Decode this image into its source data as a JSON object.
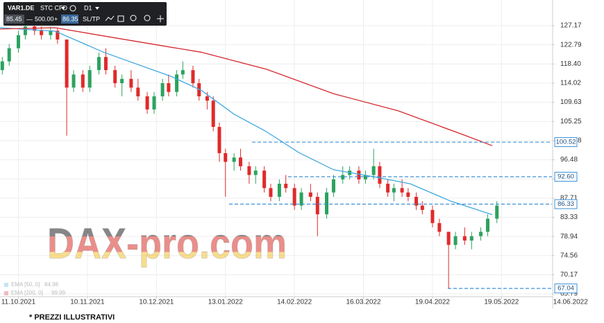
{
  "toolbar": {
    "symbol": "VAR1.DE",
    "instrument": "STC CFD",
    "timeframe": "D1",
    "bid": "85.45",
    "minus": "—",
    "quantity": "500.00",
    "plus": "+",
    "ask": "86.35",
    "sltp": "SL/TP"
  },
  "chart_data": {
    "type": "candlestick",
    "x": [
      "2021-10-04",
      "2021-10-07",
      "2021-10-11",
      "2021-10-14",
      "2021-10-18",
      "2021-10-21",
      "2021-10-25",
      "2021-10-28",
      "2021-11-01",
      "2021-11-04",
      "2021-11-08",
      "2021-11-11",
      "2021-11-15",
      "2021-11-18",
      "2021-11-22",
      "2021-11-25",
      "2021-11-29",
      "2021-12-02",
      "2021-12-06",
      "2021-12-09",
      "2021-12-13",
      "2021-12-16",
      "2021-12-20",
      "2021-12-23",
      "2021-12-28",
      "2021-12-31",
      "2022-01-04",
      "2022-01-07",
      "2022-01-10",
      "2022-01-13",
      "2022-01-17",
      "2022-01-20",
      "2022-01-24",
      "2022-01-27",
      "2022-01-31",
      "2022-02-03",
      "2022-02-07",
      "2022-02-10",
      "2022-02-14",
      "2022-02-17",
      "2022-02-21",
      "2022-02-24",
      "2022-02-28",
      "2022-03-03",
      "2022-03-07",
      "2022-03-10",
      "2022-03-14",
      "2022-03-17",
      "2022-03-21",
      "2022-03-24",
      "2022-03-28",
      "2022-03-31",
      "2022-04-04",
      "2022-04-07",
      "2022-04-11",
      "2022-04-14",
      "2022-04-19",
      "2022-04-22",
      "2022-04-26",
      "2022-04-29",
      "2022-05-03",
      "2022-05-06",
      "2022-05-10",
      "2022-05-13",
      "2022-05-17"
    ],
    "open": [
      117,
      119,
      122,
      125,
      127,
      126,
      125,
      126,
      124,
      113,
      116,
      113,
      117,
      120,
      117,
      114,
      115,
      113,
      111,
      108,
      111,
      114,
      112,
      116,
      117,
      114,
      111,
      110,
      104,
      98,
      96,
      97,
      95,
      93,
      94,
      90,
      88,
      91,
      90,
      86,
      89,
      88,
      84,
      89,
      92,
      93,
      94,
      92,
      93,
      95,
      91,
      89,
      90,
      89,
      88,
      86,
      85,
      82,
      80,
      77,
      79,
      78,
      79,
      80,
      83
    ],
    "high": [
      120,
      123,
      126,
      128,
      128,
      127,
      127,
      126.5,
      124,
      117,
      117,
      118,
      121,
      122,
      118,
      116,
      117,
      115,
      112,
      112,
      115,
      116,
      117,
      119,
      118,
      115,
      112,
      111,
      105,
      99,
      98,
      99,
      96,
      95,
      95,
      91,
      92,
      93,
      91,
      90,
      91,
      89,
      90,
      93,
      95,
      95,
      95,
      94,
      99,
      96,
      92,
      91,
      92,
      90,
      89,
      87,
      86,
      83,
      80,
      80,
      81,
      80,
      81,
      84,
      87
    ],
    "low": [
      116,
      118,
      121,
      124,
      125,
      124,
      124,
      123,
      102,
      112,
      112,
      112,
      116,
      116,
      113,
      111,
      112,
      110,
      107,
      107,
      110,
      111,
      111,
      115,
      113,
      110,
      108,
      103,
      96,
      88,
      94,
      94,
      91,
      91,
      89,
      87,
      87,
      89,
      85,
      85,
      87,
      79,
      83,
      88,
      91,
      92,
      91,
      91,
      92,
      90,
      88,
      87,
      88,
      87,
      85,
      84,
      81,
      79,
      67,
      76,
      77,
      76,
      78,
      79,
      82
    ],
    "close": [
      119,
      122,
      125,
      127,
      126,
      125,
      126,
      124,
      113,
      116,
      113,
      117,
      120,
      117,
      114,
      115,
      113,
      111,
      108,
      111,
      114,
      112,
      116,
      117,
      114,
      111,
      110,
      104,
      98,
      96,
      97,
      95,
      93,
      94,
      90,
      88,
      91,
      90,
      86,
      89,
      88,
      84,
      89,
      92,
      93,
      94,
      92,
      93,
      95,
      91,
      89,
      90,
      89,
      88,
      86,
      85,
      82,
      80,
      77,
      79,
      78,
      79,
      80,
      83,
      86
    ],
    "up_color": "#2ca25f",
    "down_color": "#e02a2a",
    "series": [
      {
        "name": "EMA [50, 0]",
        "last": 84.98,
        "color": "#3fa9e0",
        "x": [
          "2021-10-03",
          "2021-10-27",
          "2021-11-17",
          "2021-12-17",
          "2022-01-01",
          "2022-01-17",
          "2022-02-01",
          "2022-02-16",
          "2022-03-03",
          "2022-03-21",
          "2022-04-08",
          "2022-04-27",
          "2022-05-15"
        ],
        "values": [
          126.7,
          125.9,
          121.1,
          115.6,
          112.4,
          106.9,
          102.9,
          98.1,
          94.2,
          92.6,
          91.0,
          87.0,
          83.9
        ]
      },
      {
        "name": "EMA [200, 0]",
        "last": 99.99,
        "color": "#d4282e",
        "x": [
          "2021-10-03",
          "2021-10-27",
          "2021-12-02",
          "2022-01-01",
          "2022-02-01",
          "2022-03-03",
          "2022-04-02",
          "2022-05-03",
          "2022-05-15"
        ],
        "values": [
          126.4,
          126.7,
          123.5,
          121.1,
          117.2,
          111.6,
          107.7,
          102.1,
          99.7
        ]
      }
    ],
    "levels": [
      100.52,
      {
        "value": 92.6,
        "label": "92.60"
      },
      86.33,
      67.04
    ],
    "level_color": "#3a8fd9",
    "xlim": [
      "2021-10-03",
      "2022-06-07"
    ],
    "xticks": [
      {
        "value": "2021-10-11",
        "label": "11.10.2021"
      },
      {
        "value": "2021-11-10",
        "label": "10.11.2021"
      },
      {
        "value": "2021-12-10",
        "label": "10.12.2021"
      },
      {
        "value": "2022-01-13",
        "label": "13.01.2022"
      },
      {
        "value": "2022-02-14",
        "label": "14.02.2022"
      },
      {
        "value": "2022-03-16",
        "label": "16.03.2022"
      },
      {
        "value": "2022-04-19",
        "label": "19.04.2022"
      },
      {
        "value": "2022-05-19",
        "label": "19.05.2022"
      },
      {
        "value": "2022-06-14",
        "label": "14.06.2022"
      }
    ],
    "ylim": [
      65.16,
      133.04
    ],
    "yticks": [
      127.17,
      122.79,
      {
        "value": 118.4,
        "label": "118.40"
      },
      114.02,
      109.63,
      105.25,
      100.88,
      96.48,
      92.09,
      87.71,
      83.33,
      78.94,
      74.56,
      70.17,
      65.79
    ],
    "grid": true,
    "watermark": "DAX-pro.com",
    "footnote": "* PREZZI ILLUSTRATIVI"
  }
}
